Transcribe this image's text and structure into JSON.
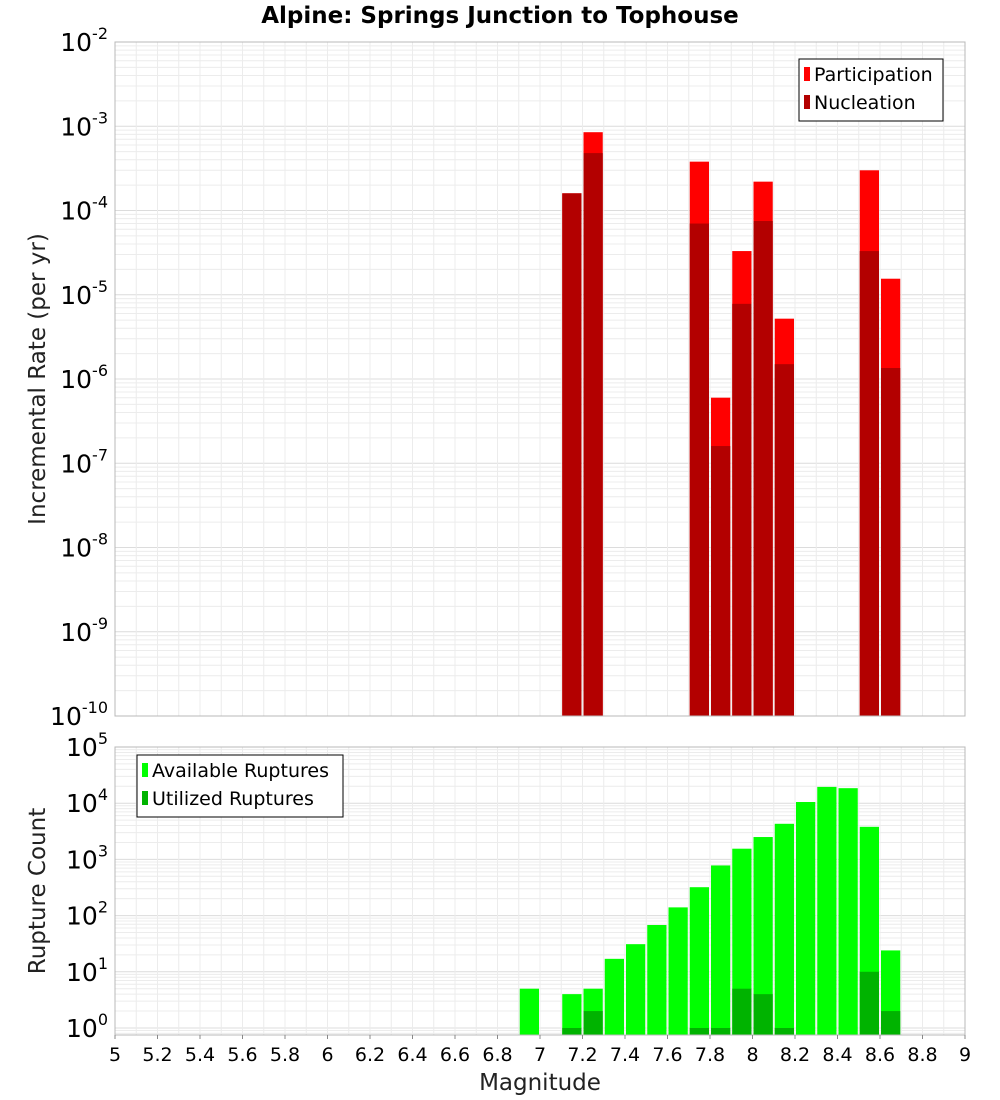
{
  "chart_data": [
    {
      "type": "bar",
      "title": "Alpine: Springs Junction to Tophouse",
      "xlabel": "",
      "ylabel": "Incremental Rate (per yr)",
      "xlim": [
        5,
        9
      ],
      "ylim": [
        1e-10,
        0.01
      ],
      "yscale": "log",
      "grid": true,
      "legend_position": "top-right",
      "bin_width": 0.1,
      "x_ticks": [
        "5",
        "5.2",
        "5.4",
        "5.6",
        "5.8",
        "6",
        "6.2",
        "6.4",
        "6.6",
        "6.8",
        "7",
        "7.2",
        "7.4",
        "7.6",
        "7.8",
        "8",
        "8.2",
        "8.4",
        "8.6",
        "8.8",
        "9"
      ],
      "y_tick_exponents": [
        "-10",
        "-9",
        "-8",
        "-7",
        "-6",
        "-5",
        "-4",
        "-3",
        "-2"
      ],
      "series": [
        {
          "name": "Participation",
          "color": "#ff0000",
          "x": [
            7.15,
            7.25,
            7.75,
            7.85,
            7.95,
            8.05,
            8.15,
            8.55,
            8.65
          ],
          "values": [
            0.00016,
            0.00085,
            0.00038,
            6e-07,
            3.3e-05,
            0.00022,
            5.2e-06,
            0.0003,
            1.55e-05
          ]
        },
        {
          "name": "Nucleation",
          "color": "#b30000",
          "x": [
            7.15,
            7.25,
            7.75,
            7.85,
            7.95,
            8.05,
            8.15,
            8.55,
            8.65
          ],
          "values": [
            0.00016,
            0.00048,
            7e-05,
            1.6e-07,
            7.8e-06,
            7.5e-05,
            1.5e-06,
            3.3e-05,
            1.35e-06
          ]
        }
      ]
    },
    {
      "type": "bar",
      "title": "",
      "xlabel": "Magnitude",
      "ylabel": "Rupture Count",
      "xlim": [
        5,
        9
      ],
      "ylim": [
        0.75,
        100000.0
      ],
      "yscale": "log",
      "grid": true,
      "legend_position": "top-left",
      "bin_width": 0.1,
      "x_ticks": [
        "5",
        "5.2",
        "5.4",
        "5.6",
        "5.8",
        "6",
        "6.2",
        "6.4",
        "6.6",
        "6.8",
        "7",
        "7.2",
        "7.4",
        "7.6",
        "7.8",
        "8",
        "8.2",
        "8.4",
        "8.6",
        "8.8",
        "9"
      ],
      "y_tick_exponents": [
        "0",
        "1",
        "2",
        "3",
        "4",
        "5"
      ],
      "series": [
        {
          "name": "Available Ruptures",
          "color": "#00ff00",
          "x": [
            6.95,
            7.15,
            7.25,
            7.35,
            7.45,
            7.55,
            7.65,
            7.75,
            7.85,
            7.95,
            8.05,
            8.15,
            8.25,
            8.35,
            8.45,
            8.55,
            8.65
          ],
          "values": [
            5,
            4,
            5,
            17,
            31,
            68,
            140,
            320,
            780,
            1550,
            2500,
            4300,
            10500,
            19500,
            18500,
            3800,
            24
          ]
        },
        {
          "name": "Utilized Ruptures",
          "color": "#00b300",
          "x": [
            7.15,
            7.25,
            7.75,
            7.85,
            7.95,
            8.05,
            8.15,
            8.55,
            8.65
          ],
          "values": [
            1,
            2,
            1,
            1,
            5,
            4,
            1,
            10,
            2
          ]
        }
      ]
    }
  ]
}
